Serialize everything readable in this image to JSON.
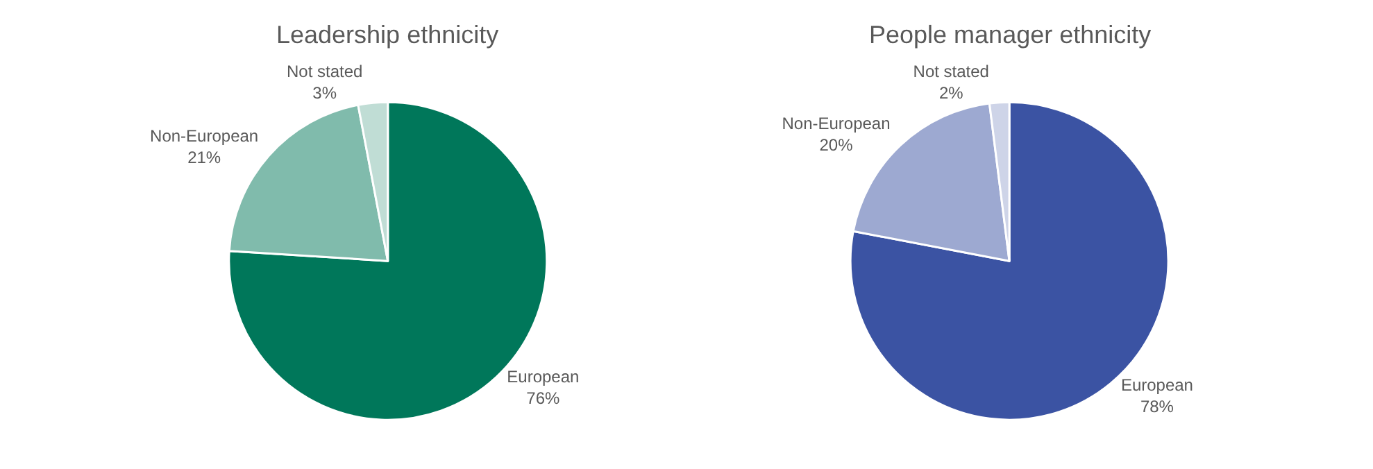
{
  "chart_data": [
    {
      "type": "pie",
      "title": "Leadership ethnicity",
      "categories": [
        "European",
        "Non-European",
        "Not stated"
      ],
      "values": [
        76,
        21,
        3
      ],
      "value_labels": [
        "76%",
        "21%",
        "3%"
      ],
      "colors": [
        "#00775a",
        "#80bbac",
        "#c0ddd5"
      ],
      "legend": false
    },
    {
      "type": "pie",
      "title": "People manager ethnicity",
      "categories": [
        "European",
        "Non-European",
        "Not stated"
      ],
      "values": [
        78,
        20,
        2
      ],
      "value_labels": [
        "78%",
        "20%",
        "2%"
      ],
      "colors": [
        "#3b53a3",
        "#9da9d1",
        "#ced4e8"
      ],
      "legend": false
    }
  ]
}
